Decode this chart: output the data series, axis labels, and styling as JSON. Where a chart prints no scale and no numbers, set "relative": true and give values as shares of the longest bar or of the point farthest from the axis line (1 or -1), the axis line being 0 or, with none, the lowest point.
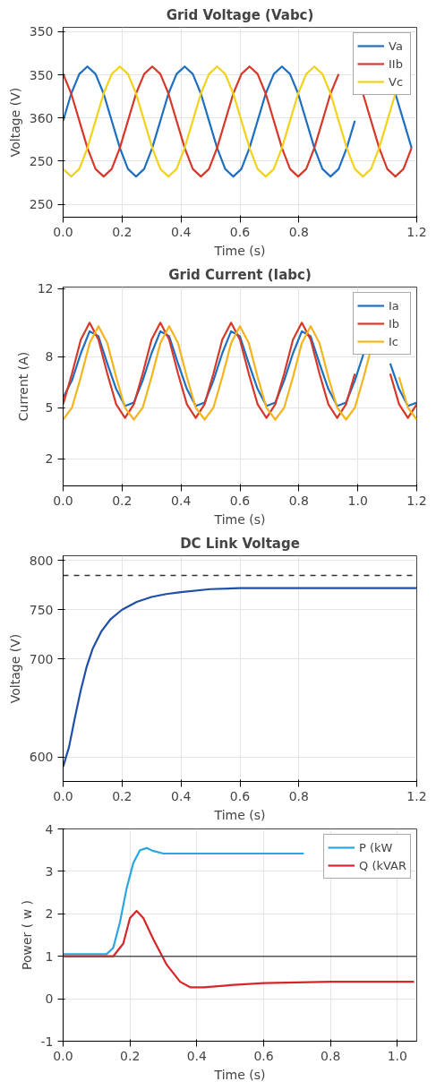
{
  "chart_data": [
    {
      "type": "line",
      "title": "Grid Voltage (Vabc)",
      "xlabel": "Time (s)",
      "ylabel": "Voltage (V)",
      "xlim": [
        0,
        1.2
      ],
      "xticks": [
        {
          "value": 0,
          "label": "0.0"
        },
        0.2,
        0.4,
        0.6,
        0.8,
        {
          "value": 1.2,
          "label": "1.2"
        }
      ],
      "relative": true,
      "annotations": [
        "250",
        "250",
        "360",
        "350",
        "350"
      ],
      "grid": true,
      "legend": "top right",
      "x": [
        0,
        0.0275,
        0.055,
        0.0825,
        0.11,
        0.1375,
        0.165,
        0.1925,
        0.22,
        0.2475,
        0.275,
        0.3025,
        0.33,
        0.3575,
        0.385,
        0.4125,
        0.44,
        0.4675,
        0.495,
        0.5225,
        0.55,
        0.5775,
        0.605,
        0.6325,
        0.66,
        0.6875,
        0.715,
        0.7425,
        0.77,
        0.7975,
        0.825,
        0.8525,
        0.88,
        0.9075,
        0.935,
        0.9625,
        0.99,
        1.0175,
        1.045,
        1.0725,
        1.1,
        1.1275,
        1.155,
        1.1825
      ],
      "series": [
        {
          "name": "Va",
          "color": "#1f6fc0",
          "values": [
            0.64,
            0.82,
            0.95,
            1.0,
            0.95,
            0.82,
            0.64,
            0.46,
            0.32,
            0.27,
            0.32,
            0.46,
            0.64,
            0.82,
            0.95,
            1.0,
            0.95,
            0.82,
            0.64,
            0.46,
            0.32,
            0.27,
            0.32,
            0.46,
            0.64,
            0.82,
            0.95,
            1.0,
            0.95,
            0.82,
            0.64,
            0.46,
            0.32,
            0.27,
            0.32,
            0.46,
            0.64,
            null,
            null,
            null,
            null,
            0.82,
            0.64,
            0.46
          ]
        },
        {
          "name": "IIb",
          "color": "#d6392a",
          "values": [
            0.95,
            0.82,
            0.64,
            0.46,
            0.32,
            0.27,
            0.32,
            0.46,
            0.64,
            0.82,
            0.95,
            1.0,
            0.95,
            0.82,
            0.64,
            0.46,
            0.32,
            0.27,
            0.32,
            0.46,
            0.64,
            0.82,
            0.95,
            1.0,
            0.95,
            0.82,
            0.64,
            0.46,
            0.32,
            0.27,
            0.32,
            0.46,
            0.64,
            0.82,
            0.95,
            null,
            null,
            0.82,
            0.64,
            0.46,
            0.32,
            0.27,
            0.32,
            0.46
          ]
        },
        {
          "name": "Vc",
          "color": "#f2d21b",
          "values": [
            0.32,
            0.27,
            0.32,
            0.46,
            0.64,
            0.82,
            0.95,
            1.0,
            0.95,
            0.82,
            0.64,
            0.46,
            0.32,
            0.27,
            0.32,
            0.46,
            0.64,
            0.82,
            0.95,
            1.0,
            0.95,
            0.82,
            0.64,
            0.46,
            0.32,
            0.27,
            0.32,
            0.46,
            0.64,
            0.82,
            0.95,
            1.0,
            0.95,
            0.82,
            0.64,
            0.46,
            0.32,
            0.27,
            0.32,
            0.46,
            0.64,
            0.82,
            null,
            null
          ]
        }
      ]
    },
    {
      "type": "line",
      "title": "Grid Current (Iabc)",
      "xlabel": "Time (s)",
      "ylabel": "Current (A)",
      "xlim": [
        0,
        1.2
      ],
      "xticks": [
        {
          "value": 0,
          "label": "0.0"
        },
        0.2,
        0.4,
        0.6,
        0.8,
        {
          "value": 1,
          "label": "1.0"
        },
        {
          "value": 1.2,
          "label": "1.2"
        }
      ],
      "ylim": [
        0.4,
        12.1
      ],
      "yticks": [
        2,
        5,
        8,
        12
      ],
      "grid": true,
      "legend": "top right",
      "x": [
        0,
        0.03,
        0.06,
        0.09,
        0.12,
        0.15,
        0.18,
        0.21,
        0.24,
        0.27,
        0.3,
        0.33,
        0.36,
        0.39,
        0.42,
        0.45,
        0.48,
        0.51,
        0.54,
        0.57,
        0.6,
        0.63,
        0.66,
        0.69,
        0.72,
        0.75,
        0.78,
        0.81,
        0.84,
        0.87,
        0.9,
        0.93,
        0.96,
        0.99,
        1.02,
        1.05,
        1.08,
        1.11,
        1.14,
        1.17,
        1.2
      ],
      "series": [
        {
          "name": "Ia",
          "color": "#1f6fc0",
          "values": [
            5.6,
            6.6,
            8.2,
            9.5,
            9.2,
            7.6,
            6.1,
            5.1,
            5.3,
            6.6,
            8.2,
            9.5,
            9.2,
            7.6,
            6.1,
            5.1,
            5.3,
            6.6,
            8.2,
            9.5,
            9.2,
            7.6,
            6.1,
            5.1,
            5.3,
            6.6,
            8.2,
            9.5,
            9.2,
            7.6,
            6.1,
            5.1,
            5.3,
            6.6,
            8.2,
            null,
            null,
            7.6,
            6.1,
            5.1,
            5.3
          ]
        },
        {
          "name": "Ib",
          "color": "#d6392a",
          "values": [
            5.2,
            7.0,
            9.0,
            10.0,
            9.0,
            7.0,
            5.2,
            4.4,
            5.2,
            7.0,
            9.0,
            10.0,
            9.0,
            7.0,
            5.2,
            4.4,
            5.2,
            7.0,
            9.0,
            10.0,
            9.0,
            7.0,
            5.2,
            4.4,
            5.2,
            7.0,
            9.0,
            10.0,
            9.0,
            7.0,
            5.2,
            4.4,
            5.2,
            7.0,
            null,
            null,
            null,
            7.0,
            5.2,
            4.4,
            5.2
          ]
        },
        {
          "name": "Ic",
          "color": "#f5b41b",
          "values": [
            4.3,
            5.0,
            6.8,
            8.8,
            9.8,
            8.8,
            6.8,
            5.0,
            4.3,
            5.0,
            6.8,
            8.8,
            9.8,
            8.8,
            6.8,
            5.0,
            4.3,
            5.0,
            6.8,
            8.8,
            9.8,
            8.8,
            6.8,
            5.0,
            4.3,
            5.0,
            6.8,
            8.8,
            9.8,
            8.8,
            6.8,
            5.0,
            4.3,
            5.0,
            6.8,
            8.8,
            null,
            null,
            6.8,
            5.0,
            4.3
          ]
        }
      ]
    },
    {
      "type": "line",
      "title": "DC Link Voltage",
      "xlabel": "Time (s)",
      "ylabel": "Voltage (V)",
      "xlim": [
        0,
        1.2
      ],
      "xticks": [
        {
          "value": 0,
          "label": "0.0"
        },
        0.2,
        0.4,
        0.6,
        0.8,
        {
          "value": 1.2,
          "label": "1.2"
        }
      ],
      "ylim": [
        575,
        805
      ],
      "yticks": [
        600,
        700,
        750,
        800
      ],
      "grid": true,
      "ref_lines": [
        {
          "axis": "y",
          "value": 785,
          "color": "#333333",
          "line_style": "dashed"
        }
      ],
      "series": [
        {
          "color": "#1f4fa8",
          "x": [
            0,
            0.02,
            0.04,
            0.06,
            0.08,
            0.1,
            0.13,
            0.16,
            0.2,
            0.25,
            0.3,
            0.35,
            0.4,
            0.5,
            0.6,
            0.8,
            1.0,
            1.2
          ],
          "values": [
            590,
            610,
            640,
            668,
            692,
            710,
            728,
            740,
            750,
            758,
            763,
            766,
            768,
            771,
            772,
            772,
            772,
            772
          ]
        }
      ]
    },
    {
      "type": "line",
      "xlabel": "Time (s)",
      "ylabel": "Power ( w )",
      "xlim": [
        0,
        1.058
      ],
      "xticks": [
        {
          "value": 0,
          "label": "0.0"
        },
        0.2,
        0.4,
        0.6,
        0.8,
        {
          "value": 1,
          "label": "1.0"
        }
      ],
      "ylim": [
        -1,
        4
      ],
      "yticks": [
        -1,
        0,
        1,
        2,
        3,
        4
      ],
      "grid": true,
      "legend": "top right",
      "ref_lines": [
        {
          "axis": "y",
          "value": 1,
          "color": "#555555",
          "line_style": "solid"
        }
      ],
      "series": [
        {
          "name": "P (kW",
          "color": "#2aa7e0",
          "x": [
            0,
            0.13,
            0.15,
            0.17,
            0.19,
            0.21,
            0.23,
            0.25,
            0.27,
            0.3,
            0.5,
            0.72
          ],
          "values": [
            1.05,
            1.05,
            1.2,
            1.8,
            2.6,
            3.2,
            3.5,
            3.55,
            3.48,
            3.42,
            3.42,
            3.42
          ]
        },
        {
          "name": "Q (kVAR",
          "color": "#d7262b",
          "x": [
            0,
            0.15,
            0.18,
            0.2,
            0.22,
            0.24,
            0.27,
            0.31,
            0.35,
            0.38,
            0.42,
            0.5,
            0.6,
            0.8,
            1.05
          ],
          "values": [
            1.0,
            1.0,
            1.3,
            1.9,
            2.07,
            1.9,
            1.4,
            0.8,
            0.4,
            0.27,
            0.27,
            0.32,
            0.37,
            0.4,
            0.4
          ]
        }
      ]
    }
  ]
}
